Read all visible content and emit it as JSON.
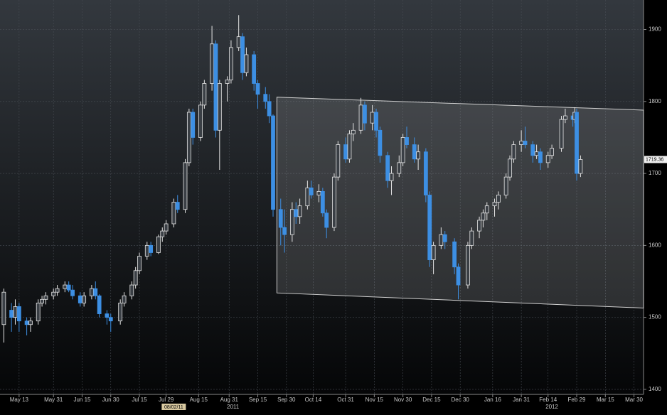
{
  "chart_data": {
    "type": "candlestick",
    "x": [
      "2011-05-05",
      "2011-05-09",
      "2011-05-11",
      "2011-05-13",
      "2011-05-17",
      "2011-05-19",
      "2011-05-23",
      "2011-05-25",
      "2011-05-27",
      "2011-05-31",
      "2011-06-02",
      "2011-06-06",
      "2011-06-08",
      "2011-06-10",
      "2011-06-14",
      "2011-06-16",
      "2011-06-20",
      "2011-06-22",
      "2011-06-24",
      "2011-06-28",
      "2011-06-30",
      "2011-07-05",
      "2011-07-07",
      "2011-07-11",
      "2011-07-13",
      "2011-07-15",
      "2011-07-19",
      "2011-07-21",
      "2011-07-25",
      "2011-07-27",
      "2011-07-29",
      "2011-08-02",
      "2011-08-04",
      "2011-08-08",
      "2011-08-10",
      "2011-08-12",
      "2011-08-16",
      "2011-08-18",
      "2011-08-22",
      "2011-08-24",
      "2011-08-26",
      "2011-08-30",
      "2011-09-01",
      "2011-09-05",
      "2011-09-07",
      "2011-09-09",
      "2011-09-13",
      "2011-09-15",
      "2011-09-19",
      "2011-09-21",
      "2011-09-23",
      "2011-09-27",
      "2011-09-29",
      "2011-10-03",
      "2011-10-05",
      "2011-10-07",
      "2011-10-11",
      "2011-10-13",
      "2011-10-17",
      "2011-10-19",
      "2011-10-21",
      "2011-10-25",
      "2011-10-27",
      "2011-10-31",
      "2011-11-02",
      "2011-11-04",
      "2011-11-08",
      "2011-11-10",
      "2011-11-14",
      "2011-11-16",
      "2011-11-18",
      "2011-11-22",
      "2011-11-24",
      "2011-11-28",
      "2011-11-30",
      "2011-12-02",
      "2011-12-06",
      "2011-12-08",
      "2011-12-12",
      "2011-12-14",
      "2011-12-16",
      "2011-12-20",
      "2011-12-22",
      "2011-12-27",
      "2011-12-29",
      "2012-01-03",
      "2012-01-05",
      "2012-01-09",
      "2012-01-11",
      "2012-01-13",
      "2012-01-17",
      "2012-01-19",
      "2012-01-23",
      "2012-01-25",
      "2012-01-27",
      "2012-01-31",
      "2012-02-02",
      "2012-02-06",
      "2012-02-08",
      "2012-02-10",
      "2012-02-14",
      "2012-02-16",
      "2012-02-21",
      "2012-02-23",
      "2012-02-27",
      "2012-02-28",
      "2012-02-29",
      "2012-03-02"
    ],
    "open": [
      1490,
      1510,
      1500,
      1515,
      1495,
      1490,
      1495,
      1520,
      1525,
      1530,
      1535,
      1540,
      1545,
      1538,
      1530,
      1520,
      1530,
      1540,
      1530,
      1505,
      1500,
      1495,
      1520,
      1530,
      1545,
      1565,
      1585,
      1600,
      1590,
      1612,
      1620,
      1630,
      1660,
      1650,
      1715,
      1785,
      1750,
      1795,
      1825,
      1880,
      1760,
      1825,
      1830,
      1875,
      1890,
      1840,
      1865,
      1825,
      1810,
      1800,
      1780,
      1650,
      1625,
      1615,
      1650,
      1640,
      1655,
      1680,
      1670,
      1675,
      1645,
      1625,
      1695,
      1740,
      1720,
      1755,
      1760,
      1795,
      1770,
      1785,
      1760,
      1725,
      1690,
      1700,
      1715,
      1750,
      1740,
      1720,
      1730,
      1670,
      1580,
      1600,
      1615,
      1605,
      1570,
      1545,
      1600,
      1620,
      1635,
      1645,
      1655,
      1660,
      1670,
      1695,
      1720,
      1740,
      1745,
      1740,
      1725,
      1730,
      1715,
      1725,
      1735,
      1775,
      1780,
      1775,
      1785,
      1700
    ],
    "high": [
      1540,
      1520,
      1525,
      1520,
      1500,
      1500,
      1525,
      1530,
      1535,
      1540,
      1545,
      1550,
      1550,
      1545,
      1535,
      1535,
      1545,
      1550,
      1532,
      1510,
      1505,
      1525,
      1535,
      1550,
      1570,
      1590,
      1605,
      1605,
      1615,
      1625,
      1635,
      1665,
      1670,
      1720,
      1790,
      1790,
      1800,
      1830,
      1905,
      1885,
      1830,
      1835,
      1885,
      1920,
      1895,
      1875,
      1870,
      1830,
      1820,
      1810,
      1782,
      1665,
      1650,
      1660,
      1660,
      1665,
      1690,
      1690,
      1685,
      1680,
      1650,
      1700,
      1745,
      1750,
      1760,
      1770,
      1805,
      1800,
      1795,
      1790,
      1765,
      1730,
      1710,
      1725,
      1755,
      1765,
      1750,
      1740,
      1735,
      1675,
      1605,
      1625,
      1620,
      1610,
      1575,
      1605,
      1625,
      1640,
      1650,
      1660,
      1665,
      1675,
      1700,
      1725,
      1745,
      1760,
      1765,
      1745,
      1740,
      1735,
      1730,
      1740,
      1780,
      1790,
      1785,
      1792,
      1790,
      1725
    ],
    "low": [
      1465,
      1480,
      1490,
      1480,
      1475,
      1480,
      1490,
      1515,
      1518,
      1525,
      1530,
      1535,
      1535,
      1525,
      1515,
      1515,
      1525,
      1525,
      1500,
      1490,
      1480,
      1490,
      1515,
      1525,
      1540,
      1560,
      1580,
      1585,
      1588,
      1605,
      1615,
      1625,
      1645,
      1645,
      1710,
      1740,
      1745,
      1790,
      1815,
      1750,
      1705,
      1800,
      1825,
      1870,
      1830,
      1835,
      1815,
      1790,
      1790,
      1770,
      1640,
      1600,
      1590,
      1605,
      1630,
      1630,
      1650,
      1665,
      1660,
      1640,
      1610,
      1620,
      1690,
      1715,
      1715,
      1745,
      1755,
      1760,
      1760,
      1750,
      1715,
      1680,
      1670,
      1695,
      1710,
      1735,
      1715,
      1705,
      1660,
      1570,
      1560,
      1595,
      1595,
      1560,
      1525,
      1540,
      1595,
      1610,
      1625,
      1635,
      1640,
      1650,
      1665,
      1690,
      1715,
      1730,
      1735,
      1715,
      1720,
      1705,
      1708,
      1720,
      1730,
      1770,
      1765,
      1770,
      1690,
      1695
    ],
    "close": [
      1535,
      1500,
      1515,
      1495,
      1490,
      1495,
      1520,
      1525,
      1530,
      1535,
      1540,
      1545,
      1538,
      1530,
      1520,
      1530,
      1540,
      1530,
      1505,
      1500,
      1495,
      1520,
      1530,
      1545,
      1565,
      1585,
      1600,
      1590,
      1612,
      1620,
      1630,
      1660,
      1650,
      1715,
      1785,
      1750,
      1795,
      1825,
      1880,
      1760,
      1825,
      1830,
      1875,
      1890,
      1840,
      1865,
      1825,
      1810,
      1800,
      1780,
      1650,
      1625,
      1615,
      1650,
      1640,
      1655,
      1680,
      1670,
      1675,
      1645,
      1625,
      1695,
      1740,
      1720,
      1755,
      1760,
      1795,
      1770,
      1785,
      1760,
      1725,
      1690,
      1700,
      1715,
      1750,
      1740,
      1720,
      1730,
      1670,
      1580,
      1600,
      1615,
      1605,
      1570,
      1545,
      1600,
      1620,
      1635,
      1645,
      1655,
      1660,
      1670,
      1695,
      1720,
      1740,
      1745,
      1740,
      1725,
      1730,
      1715,
      1725,
      1735,
      1775,
      1780,
      1775,
      1785,
      1700,
      1719.36
    ],
    "up_color": "#e6e6e6",
    "down_color": "#3d8fe3",
    "xlim": [
      "2011-05-03",
      "2012-04-04"
    ],
    "ylim": [
      1393,
      1941
    ],
    "yticks": [
      1400,
      1500,
      1600,
      1700,
      1800,
      1900
    ],
    "xticks": [
      {
        "value": "2011-05-13",
        "label": "May 13"
      },
      {
        "value": "2011-05-31",
        "label": "May 31"
      },
      {
        "value": "2011-06-15",
        "label": "Jun 15"
      },
      {
        "value": "2011-06-30",
        "label": "Jun 30"
      },
      {
        "value": "2011-07-15",
        "label": "Jul 15"
      },
      {
        "value": "2011-07-29",
        "label": "Jul 29"
      },
      {
        "value": "2011-08-15",
        "label": "Aug 15"
      },
      {
        "value": "2011-08-31",
        "label": "Aug 31"
      },
      {
        "value": "2011-09-15",
        "label": "Sep 15"
      },
      {
        "value": "2011-09-30",
        "label": "Sep 30"
      },
      {
        "value": "2011-10-14",
        "label": "Oct 14"
      },
      {
        "value": "2011-10-31",
        "label": "Oct 31"
      },
      {
        "value": "2011-11-15",
        "label": "Nov 15"
      },
      {
        "value": "2011-11-30",
        "label": "Nov 30"
      },
      {
        "value": "2011-12-15",
        "label": "Dec 15"
      },
      {
        "value": "2011-12-30",
        "label": "Dec 30"
      },
      {
        "value": "2012-01-16",
        "label": "Jan 16"
      },
      {
        "value": "2012-01-31",
        "label": "Jan 31"
      },
      {
        "value": "2012-02-14",
        "label": "Feb 14"
      },
      {
        "value": "2012-02-29",
        "label": "Feb 29"
      },
      {
        "value": "2012-03-15",
        "label": "Mar 15"
      },
      {
        "value": "2012-03-30",
        "label": "Mar 30"
      }
    ],
    "x_sublabels": [
      {
        "value": "2011-08-02",
        "label": "08/02/11"
      },
      {
        "value": "2011-09-02",
        "label": "2011"
      },
      {
        "value": "2012-02-16",
        "label": "2012"
      }
    ],
    "grid": true,
    "last_price": 1719.36,
    "channel": {
      "x": [
        "2011-09-25",
        "2012-04-04"
      ],
      "upper": [
        1806,
        1788
      ],
      "lower": [
        1534,
        1513
      ]
    }
  }
}
